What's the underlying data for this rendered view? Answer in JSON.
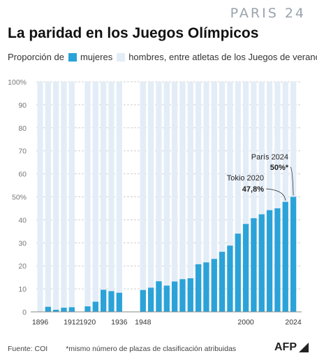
{
  "header": {
    "brand": "PARIS 24",
    "title": "La paridad en los Juegos Olímpicos",
    "subtitle_prefix": "Proporción de",
    "legend_women": "mujeres",
    "legend_men": "hombres, entre atletas de los Juegos de verano"
  },
  "colors": {
    "women": "#2ba3d8",
    "men": "#e3edf7",
    "axis_text": "#777777",
    "annotation": "#222222"
  },
  "chart_data": {
    "type": "bar",
    "stacked_to": 100,
    "years": [
      1896,
      1900,
      1904,
      1908,
      1912,
      1916,
      1920,
      1924,
      1928,
      1932,
      1936,
      1940,
      1944,
      1948,
      1952,
      1956,
      1960,
      1964,
      1968,
      1972,
      1976,
      1980,
      1984,
      1988,
      1992,
      1996,
      2000,
      2004,
      2008,
      2012,
      2016,
      2020,
      2024
    ],
    "women_pct": [
      0,
      2.2,
      0.9,
      1.8,
      2.0,
      null,
      2.4,
      4.4,
      9.6,
      9.0,
      8.3,
      null,
      null,
      9.5,
      10.5,
      13.3,
      11.4,
      13.2,
      14.2,
      14.6,
      20.7,
      21.5,
      23.0,
      26.1,
      28.8,
      34.0,
      38.2,
      40.7,
      42.4,
      44.2,
      45.0,
      47.8,
      50
    ],
    "x_tick_labels": [
      "1896",
      "1912",
      "1920",
      "1936",
      "1948",
      "2000",
      "2024"
    ],
    "y_ticks": [
      "0",
      "10",
      "20",
      "30",
      "40",
      "50%",
      "60",
      "70",
      "80",
      "90",
      "100%"
    ],
    "ylim": [
      0,
      100
    ],
    "annotations": [
      {
        "label": "Tokio 2020",
        "value": "47,8%",
        "year": 2020
      },
      {
        "label": "París 2024",
        "value": "50%*",
        "year": 2024
      }
    ]
  },
  "footer": {
    "source": "Fuente: COI",
    "note": "*mismo número de plazas de clasificación atribuidas",
    "agency": "AFP"
  }
}
